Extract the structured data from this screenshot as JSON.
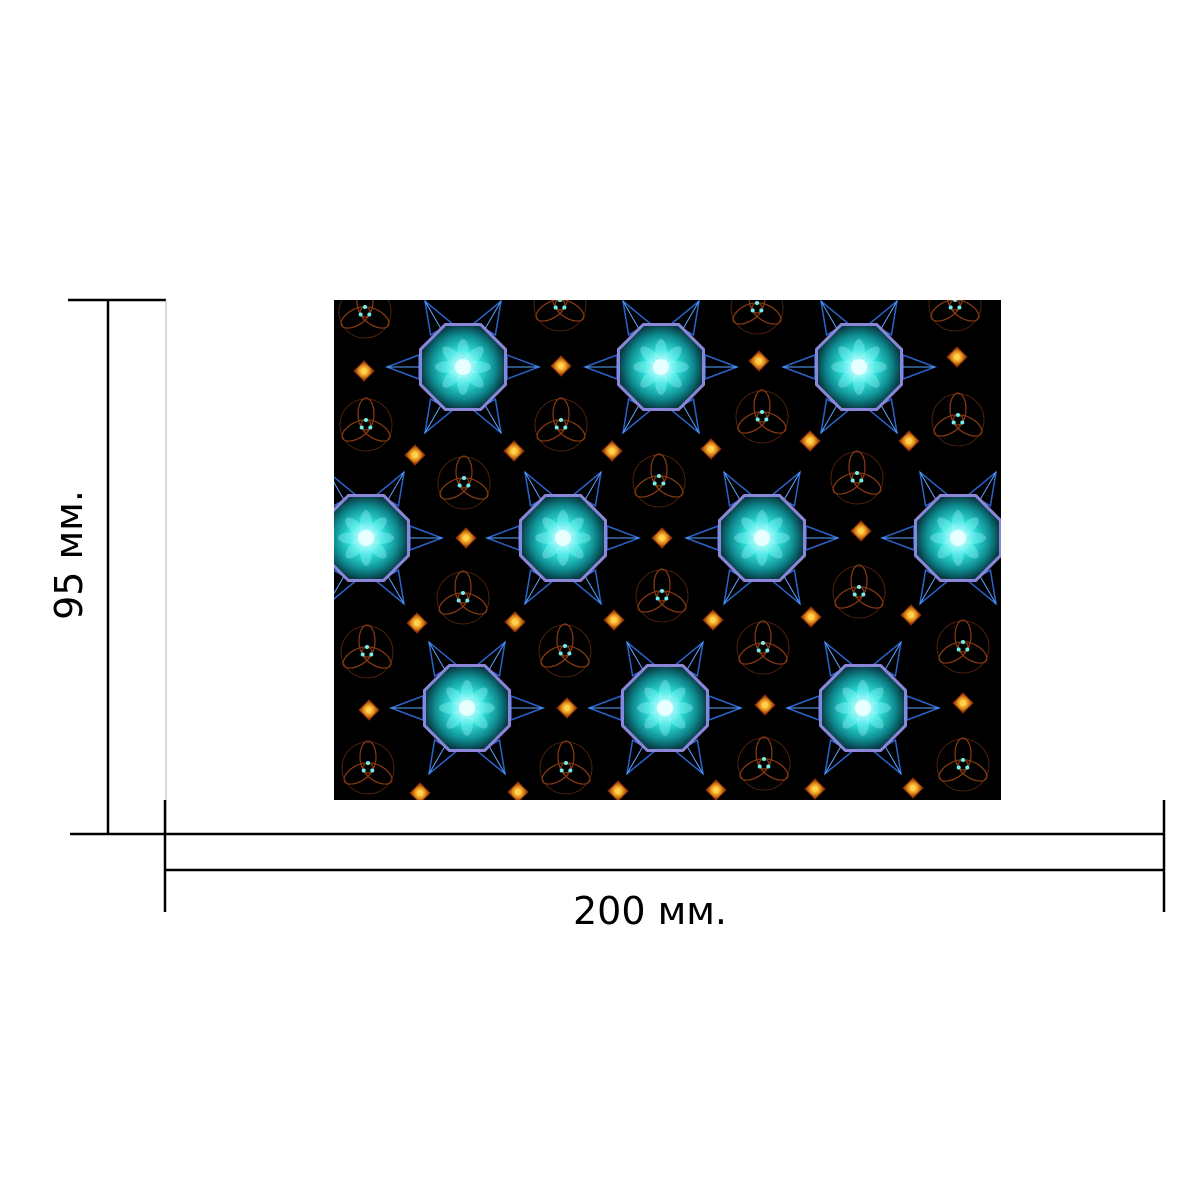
{
  "dimensions": {
    "height_label": "95 мм.",
    "width_label": "200 мм."
  },
  "pattern": {
    "background_color": "#000000",
    "flower_color": "#1ed8d0",
    "flower_core_color": "#e8ffff",
    "flower_rim_color": "#8c86d8",
    "diamond_color": "#e07a10",
    "diamond_core_color": "#ffd24a",
    "spike_color": "#2f6fe0",
    "triquetra_color": "#8a3a12",
    "triquetra_dot_color": "#6ff0f0",
    "line_color": "#000000"
  }
}
